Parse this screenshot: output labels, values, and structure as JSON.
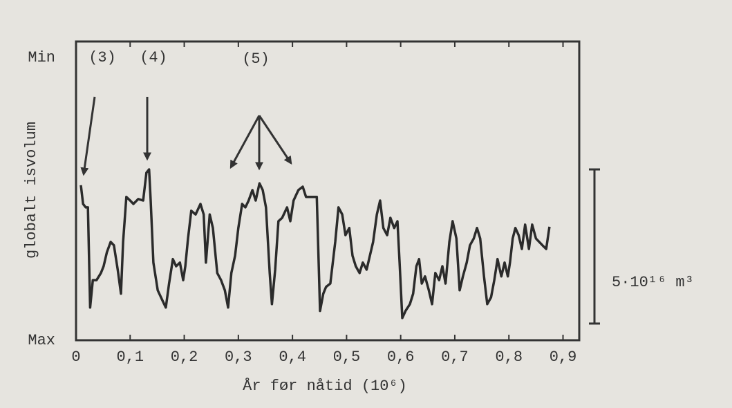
{
  "chart_data": {
    "type": "line",
    "y_axis_label": "globalt isvolum",
    "x_axis_label": "År før nåtid (10⁶)",
    "annotations": [
      "(3)",
      "(4)",
      "(5)"
    ],
    "scale_bar": {
      "value": 5,
      "label": "5·10¹⁶ m³"
    },
    "color": "#2b2b2b",
    "y_inverted": true,
    "xlim": [
      0,
      0.93
    ],
    "ylim": [
      0,
      9.69
    ],
    "xticks": [
      0,
      {
        "value": 0.1,
        "label": "0,1"
      },
      {
        "value": 0.2,
        "label": "0,2"
      },
      {
        "value": 0.3,
        "label": "0,3"
      },
      {
        "value": 0.4,
        "label": "0,4"
      },
      {
        "value": 0.5,
        "label": "0,5"
      },
      {
        "value": 0.6,
        "label": "0,6"
      },
      {
        "value": 0.7,
        "label": "0,7"
      },
      {
        "value": 0.8,
        "label": "0,8"
      },
      {
        "value": 0.9,
        "label": "0,9"
      }
    ],
    "yticks": [
      {
        "value": 0.52,
        "label": "Min"
      },
      {
        "value": 9.69,
        "label": "Max"
      }
    ],
    "x": [
      0.009,
      0.013,
      0.018,
      0.022,
      0.026,
      0.031,
      0.038,
      0.046,
      0.051,
      0.057,
      0.064,
      0.07,
      0.077,
      0.083,
      0.087,
      0.093,
      0.1,
      0.106,
      0.115,
      0.124,
      0.13,
      0.135,
      0.138,
      0.143,
      0.151,
      0.16,
      0.166,
      0.172,
      0.179,
      0.185,
      0.192,
      0.198,
      0.202,
      0.207,
      0.213,
      0.221,
      0.23,
      0.236,
      0.24,
      0.247,
      0.253,
      0.261,
      0.268,
      0.275,
      0.281,
      0.287,
      0.294,
      0.3,
      0.307,
      0.313,
      0.319,
      0.326,
      0.332,
      0.339,
      0.345,
      0.351,
      0.358,
      0.362,
      0.368,
      0.374,
      0.381,
      0.39,
      0.396,
      0.402,
      0.411,
      0.419,
      0.425,
      0.434,
      0.445,
      0.451,
      0.457,
      0.462,
      0.47,
      0.479,
      0.485,
      0.492,
      0.498,
      0.505,
      0.511,
      0.517,
      0.524,
      0.53,
      0.537,
      0.543,
      0.549,
      0.556,
      0.562,
      0.568,
      0.575,
      0.581,
      0.588,
      0.594,
      0.598,
      0.603,
      0.609,
      0.617,
      0.623,
      0.629,
      0.634,
      0.639,
      0.645,
      0.652,
      0.658,
      0.664,
      0.671,
      0.677,
      0.683,
      0.69,
      0.696,
      0.703,
      0.709,
      0.715,
      0.722,
      0.728,
      0.735,
      0.741,
      0.747,
      0.754,
      0.76,
      0.767,
      0.773,
      0.779,
      0.786,
      0.792,
      0.798,
      0.802,
      0.807,
      0.812,
      0.818,
      0.824,
      0.83,
      0.837,
      0.843,
      0.85,
      0.856,
      0.862,
      0.869,
      0.875
    ],
    "values": [
      4.66,
      5.27,
      5.38,
      5.38,
      8.63,
      7.74,
      7.74,
      7.51,
      7.29,
      6.84,
      6.5,
      6.61,
      7.4,
      8.18,
      6.5,
      5.04,
      5.16,
      5.27,
      5.11,
      5.16,
      4.26,
      4.15,
      5.16,
      7.17,
      8.07,
      8.41,
      8.63,
      7.85,
      7.06,
      7.29,
      7.17,
      7.74,
      7.29,
      6.39,
      5.49,
      5.61,
      5.27,
      5.61,
      7.17,
      5.61,
      6.05,
      7.51,
      7.74,
      8.07,
      8.63,
      7.51,
      6.95,
      6.05,
      5.27,
      5.38,
      5.16,
      4.82,
      5.16,
      4.6,
      4.82,
      5.38,
      7.51,
      8.52,
      7.4,
      5.83,
      5.72,
      5.38,
      5.83,
      5.16,
      4.82,
      4.71,
      5.04,
      5.04,
      5.04,
      8.74,
      8.18,
      7.96,
      7.85,
      6.5,
      5.38,
      5.61,
      6.28,
      6.05,
      6.95,
      7.29,
      7.51,
      7.17,
      7.4,
      6.95,
      6.5,
      5.61,
      5.16,
      6.05,
      6.28,
      5.72,
      6.05,
      5.83,
      7.17,
      8.97,
      8.74,
      8.52,
      8.18,
      7.29,
      7.06,
      7.85,
      7.62,
      8.07,
      8.52,
      7.51,
      7.74,
      7.29,
      7.85,
      6.5,
      5.83,
      6.39,
      8.07,
      7.62,
      7.17,
      6.61,
      6.39,
      6.05,
      6.39,
      7.62,
      8.52,
      8.3,
      7.74,
      7.06,
      7.62,
      7.17,
      7.62,
      7.17,
      6.39,
      6.05,
      6.28,
      6.73,
      5.94,
      6.73,
      5.94,
      6.39,
      6.5,
      6.61,
      6.73,
      6.01
    ]
  }
}
